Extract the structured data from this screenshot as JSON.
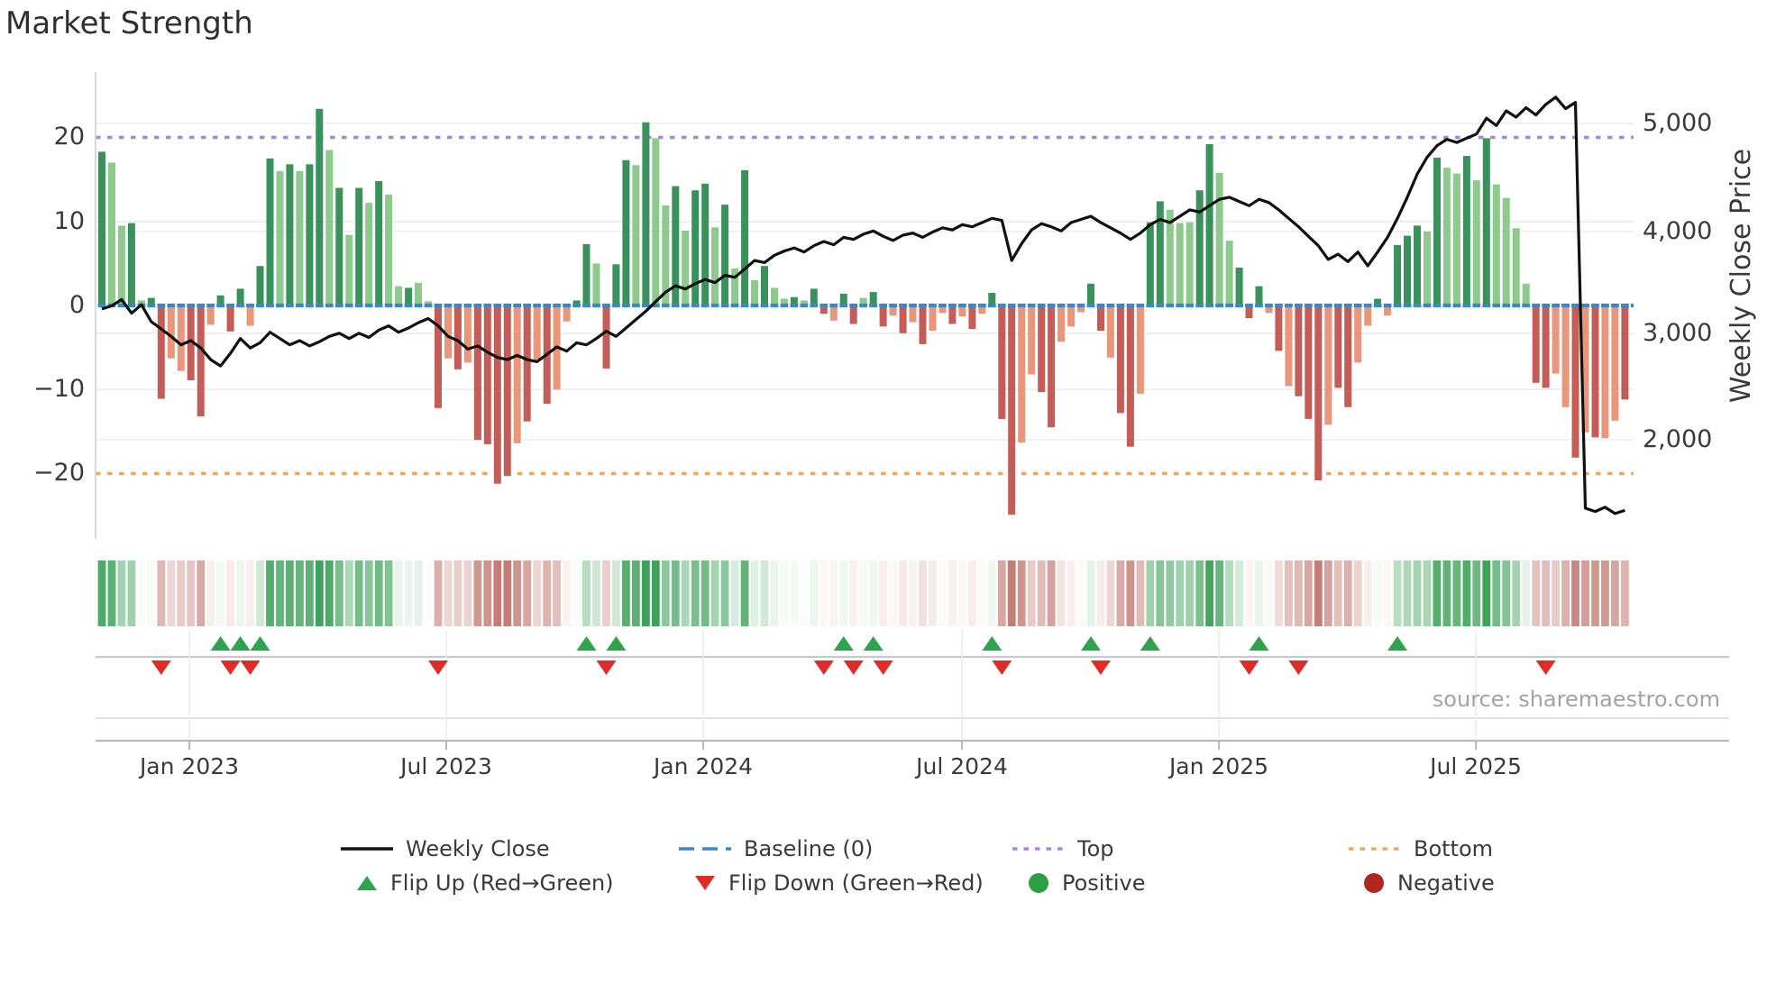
{
  "title": "Market Strength",
  "source_text": "source: sharemaestro.com",
  "axes": {
    "left_ticks": [
      "20",
      "10",
      "0",
      "−10",
      "−20"
    ],
    "left_tick_values": [
      20,
      10,
      0,
      -10,
      -20
    ],
    "right_ticks": [
      "5,000",
      "4,000",
      "3,000",
      "2,000"
    ],
    "right_tick_values": [
      5000,
      4000,
      3000,
      2000
    ],
    "right_axis_label": "Weekly Close Price",
    "x_ticks": [
      "Jan 2023",
      "Jul 2023",
      "Jan 2024",
      "Jul 2024",
      "Jan 2025",
      "Jul 2025"
    ]
  },
  "legend": {
    "items": [
      {
        "label": "Weekly Close",
        "swatch": "black-line"
      },
      {
        "label": "Baseline (0)",
        "swatch": "blue-dashed-line"
      },
      {
        "label": "Top",
        "swatch": "purple-dotted-line"
      },
      {
        "label": "Bottom",
        "swatch": "orange-dotted-line"
      },
      {
        "label": "Flip Up (Red→Green)",
        "swatch": "green-up-triangle"
      },
      {
        "label": "Flip Down (Green→Red)",
        "swatch": "red-down-triangle"
      },
      {
        "label": "Positive",
        "swatch": "green-dot"
      },
      {
        "label": "Negative",
        "swatch": "dark-red-dot"
      }
    ]
  },
  "colors": {
    "bar_pos_dark": "#39925c",
    "bar_pos_light": "#8ec98e",
    "bar_neg_dark": "#c45c58",
    "bar_neg_light": "#e9967a",
    "price_line": "#111111",
    "baseline": "#3b87c9",
    "top_line": "#a685e6",
    "bottom_line": "#f2a55f",
    "flip_up": "#2ea44f",
    "flip_down": "#e12b26",
    "positive_dot": "#2e9e44",
    "negative_dot": "#b02721",
    "heat_green": [
      62,
      162,
      90
    ],
    "heat_red": [
      198,
      125,
      118
    ],
    "grid": "#ebebf2",
    "spine": "#cfcfd6",
    "axis_line": "#b9b9b9",
    "separator": "#c9c9c9"
  },
  "chart_data": {
    "type": "bar+line combo with heatmap strip and flip markers",
    "x_unit": "weekly, Nov 2022 – Oct 2025",
    "x_tick_labels": [
      "Jan 2023",
      "Jul 2023",
      "Jan 2024",
      "Jul 2024",
      "Jan 2025",
      "Jul 2025"
    ],
    "x_tick_weeks": [
      8.84,
      34.82,
      60.8,
      86.97,
      112.95,
      138.93
    ],
    "baseline": 0,
    "top_threshold": 20,
    "bottom_threshold": -20,
    "ylim_strength": [
      -27.8,
      27.8
    ],
    "ylim_price": [
      1060,
      5490
    ],
    "strength": [
      18.3,
      17.0,
      9.5,
      9.8,
      0.6,
      0.9,
      -11.1,
      -6.3,
      -7.8,
      -8.9,
      -13.2,
      -2.3,
      1.2,
      -3.1,
      2.0,
      -2.4,
      4.7,
      17.5,
      16.0,
      16.8,
      16.0,
      16.8,
      23.4,
      18.5,
      14.0,
      8.4,
      14.0,
      12.2,
      14.8,
      13.2,
      2.3,
      2.1,
      2.7,
      0.5,
      -12.2,
      -6.3,
      -7.6,
      -6.8,
      -16.0,
      -16.5,
      -21.2,
      -20.3,
      -16.4,
      -13.8,
      -6.5,
      -11.7,
      -10.0,
      -1.9,
      0.6,
      7.3,
      5.0,
      -7.5,
      4.9,
      17.3,
      16.7,
      21.8,
      19.9,
      11.9,
      14.2,
      8.9,
      13.7,
      14.5,
      9.3,
      12.0,
      4.4,
      16.1,
      3.0,
      4.7,
      2.1,
      0.8,
      1.0,
      0.6,
      2.0,
      -1.0,
      -1.8,
      1.4,
      -2.2,
      0.9,
      1.6,
      -2.5,
      -1.2,
      -3.3,
      -2.0,
      -4.6,
      -3.0,
      -0.9,
      -2.2,
      -1.3,
      -2.8,
      -1.0,
      1.5,
      -13.5,
      -24.9,
      -16.3,
      -8.2,
      -10.3,
      -14.5,
      -4.3,
      -2.5,
      -0.8,
      2.6,
      -3.0,
      -6.2,
      -12.8,
      -16.8,
      -10.5,
      9.9,
      12.4,
      11.4,
      9.8,
      9.9,
      13.7,
      19.2,
      15.8,
      7.7,
      4.5,
      -1.5,
      2.3,
      -0.9,
      -5.4,
      -9.6,
      -10.8,
      -13.5,
      -20.8,
      -14.2,
      -9.8,
      -12.1,
      -6.8,
      -2.4,
      0.8,
      -1.2,
      7.2,
      8.3,
      9.5,
      8.8,
      17.6,
      16.4,
      15.7,
      17.8,
      14.9,
      19.9,
      14.4,
      12.8,
      9.2,
      2.6,
      -9.2,
      -9.8,
      -8.1,
      -12.1,
      -18.1,
      -15.1,
      -15.7,
      -15.8,
      -13.7,
      -11.2
    ],
    "bar_shade": [
      0,
      1,
      1,
      0,
      1,
      0,
      0,
      1,
      1,
      0,
      0,
      1,
      0,
      0,
      0,
      1,
      0,
      0,
      1,
      0,
      1,
      0,
      0,
      1,
      0,
      1,
      0,
      1,
      0,
      1,
      1,
      0,
      1,
      1,
      0,
      1,
      0,
      1,
      0,
      0,
      0,
      0,
      1,
      0,
      1,
      0,
      1,
      1,
      0,
      0,
      1,
      0,
      0,
      0,
      1,
      0,
      1,
      1,
      0,
      1,
      0,
      0,
      1,
      0,
      1,
      0,
      1,
      0,
      1,
      1,
      0,
      1,
      0,
      0,
      1,
      0,
      0,
      1,
      0,
      0,
      1,
      0,
      1,
      0,
      1,
      1,
      0,
      1,
      0,
      1,
      0,
      0,
      0,
      1,
      1,
      0,
      0,
      1,
      1,
      1,
      0,
      0,
      1,
      0,
      0,
      1,
      0,
      0,
      1,
      1,
      1,
      0,
      0,
      1,
      1,
      0,
      0,
      0,
      1,
      0,
      1,
      0,
      0,
      0,
      1,
      0,
      0,
      1,
      1,
      0,
      1,
      0,
      0,
      0,
      1,
      0,
      1,
      1,
      0,
      1,
      0,
      1,
      1,
      1,
      1,
      0,
      0,
      1,
      1,
      0,
      1,
      0,
      1,
      1,
      0
    ],
    "price": [
      3240,
      3270,
      3330,
      3200,
      3280,
      3120,
      3050,
      2980,
      2900,
      2940,
      2870,
      2760,
      2700,
      2820,
      2960,
      2870,
      2920,
      3020,
      2960,
      2900,
      2940,
      2890,
      2930,
      2980,
      3010,
      2960,
      3010,
      2970,
      3040,
      3080,
      3020,
      3060,
      3110,
      3150,
      3080,
      2980,
      2940,
      2860,
      2890,
      2830,
      2780,
      2760,
      2800,
      2760,
      2740,
      2810,
      2880,
      2840,
      2920,
      2900,
      2960,
      3030,
      2980,
      3060,
      3140,
      3220,
      3310,
      3400,
      3460,
      3430,
      3480,
      3520,
      3490,
      3560,
      3540,
      3620,
      3700,
      3680,
      3750,
      3790,
      3820,
      3780,
      3840,
      3880,
      3850,
      3920,
      3900,
      3950,
      3980,
      3930,
      3890,
      3940,
      3960,
      3920,
      3970,
      4010,
      3990,
      4040,
      4020,
      4060,
      4100,
      4080,
      3700,
      3860,
      3990,
      4050,
      4020,
      3980,
      4060,
      4090,
      4120,
      4060,
      4010,
      3960,
      3900,
      3960,
      4040,
      4090,
      4060,
      4120,
      4180,
      4160,
      4220,
      4280,
      4300,
      4260,
      4220,
      4280,
      4250,
      4180,
      4100,
      4020,
      3930,
      3840,
      3710,
      3760,
      3690,
      3780,
      3650,
      3780,
      3920,
      4100,
      4300,
      4520,
      4680,
      4790,
      4850,
      4820,
      4860,
      4900,
      5050,
      4980,
      5120,
      5060,
      5150,
      5080,
      5180,
      5250,
      5140,
      5200,
      1350,
      1320,
      1360,
      1300,
      1330
    ],
    "flip_up_weeks": [
      12,
      14,
      16,
      49,
      52,
      75,
      78,
      90,
      100,
      106,
      117,
      131
    ],
    "flip_down_weeks": [
      6,
      13,
      15,
      34,
      51,
      73,
      76,
      79,
      91,
      101,
      116,
      121,
      146
    ],
    "heatmap": "one cell per week, color intensity proportional to strength (green positive / red negative)"
  }
}
